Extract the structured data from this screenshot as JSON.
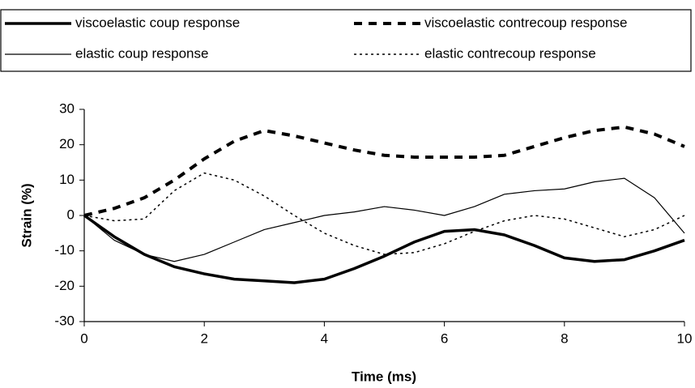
{
  "chart_data": {
    "type": "line",
    "xlabel": "Time (ms)",
    "ylabel": "Strain (%)",
    "x": [
      0,
      0.5,
      1,
      1.5,
      2,
      2.5,
      3,
      3.5,
      4,
      4.5,
      5,
      5.5,
      6,
      6.5,
      7,
      7.5,
      8,
      8.5,
      9,
      9.5,
      10
    ],
    "series": [
      {
        "name": "viscoelastic coup response",
        "color": "#000000",
        "style": "solid",
        "width": 3.5,
        "values": [
          0,
          -6,
          -11,
          -14.5,
          -16.5,
          -18,
          -18.5,
          -19,
          -18,
          -15,
          -11.5,
          -7.5,
          -4.5,
          -4,
          -5.5,
          -8.5,
          -12,
          -13,
          -12.5,
          -10,
          -7
        ]
      },
      {
        "name": "viscoelastic contrecoup response",
        "color": "#000000",
        "style": "dashed",
        "width": 4,
        "values": [
          0,
          2,
          5,
          10,
          16,
          21,
          24,
          22.5,
          20.5,
          18.5,
          17,
          16.5,
          16.5,
          16.5,
          17,
          19.5,
          22,
          24,
          25,
          23,
          19.5
        ]
      },
      {
        "name": "elastic coup response",
        "color": "#000000",
        "style": "solid",
        "width": 1.2,
        "values": [
          0,
          -7,
          -11,
          -13,
          -11,
          -7.5,
          -4,
          -2,
          0,
          1,
          2.5,
          1.5,
          0,
          2.5,
          6,
          7,
          7.5,
          9.5,
          10.5,
          5,
          -5
        ]
      },
      {
        "name": "elastic contrecoup response",
        "color": "#000000",
        "style": "dotted",
        "width": 1.5,
        "values": [
          0,
          -1.5,
          -1,
          7,
          12,
          10,
          5.5,
          0,
          -5,
          -8.5,
          -11,
          -10.5,
          -8,
          -4.5,
          -1.5,
          0,
          -1,
          -3.5,
          -6,
          -4,
          0
        ]
      }
    ],
    "xlim": [
      0,
      10
    ],
    "xticks": [
      0,
      2,
      4,
      6,
      8,
      10
    ],
    "ylim": [
      -30,
      30
    ],
    "yticks": [
      -30,
      -20,
      -10,
      0,
      10,
      20,
      30
    ],
    "grid": false,
    "legend": "top"
  }
}
